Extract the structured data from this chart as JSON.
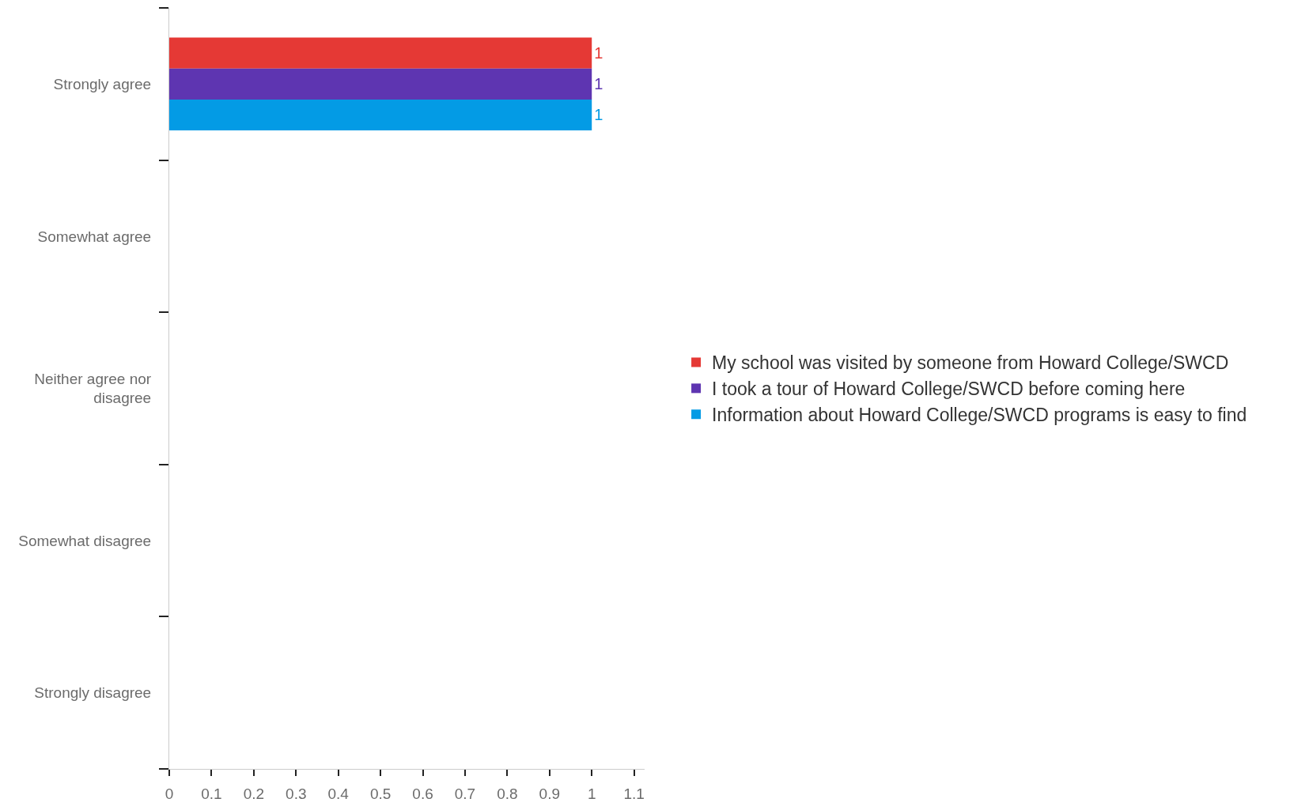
{
  "chart_data": {
    "type": "bar",
    "orientation": "horizontal",
    "categories": [
      "Strongly agree",
      "Somewhat agree",
      "Neither agree nor disagree",
      "Somewhat disagree",
      "Strongly disagree"
    ],
    "series": [
      {
        "name": "My school was visited by someone from Howard College/SWCD",
        "color": "#e53935",
        "values": [
          1,
          null,
          null,
          null,
          null
        ]
      },
      {
        "name": "I took a tour of Howard College/SWCD before coming here",
        "color": "#5e35b1",
        "values": [
          1,
          null,
          null,
          null,
          null
        ]
      },
      {
        "name": "Information about Howard College/SWCD programs is easy to find",
        "color": "#039be5",
        "values": [
          1,
          null,
          null,
          null,
          null
        ]
      }
    ],
    "xlim": [
      0,
      1.125
    ],
    "xticks": [
      0,
      0.1,
      0.2,
      0.3,
      0.4,
      0.5,
      0.6,
      0.7,
      0.8,
      0.9,
      1,
      1.1
    ],
    "data_labels": true,
    "legend": "right"
  }
}
